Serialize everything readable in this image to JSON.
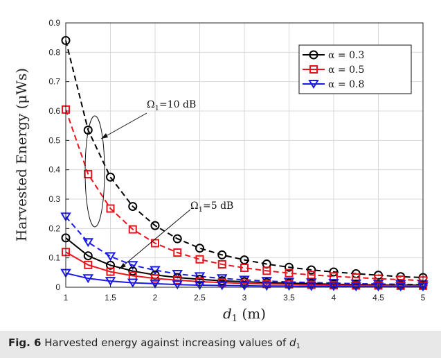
{
  "caption": {
    "label": "Fig. 6",
    "text_before": " Harvested energy against increasing values of ",
    "var": "d",
    "var_sub": "1"
  },
  "chart_data": {
    "type": "line",
    "x": [
      1,
      1.25,
      1.5,
      1.75,
      2,
      2.25,
      2.5,
      2.75,
      3,
      3.25,
      3.5,
      3.75,
      4,
      4.25,
      4.5,
      4.75,
      5
    ],
    "xlim": [
      1,
      5
    ],
    "ylim": [
      0,
      0.9
    ],
    "xticks": [
      "1",
      "1.5",
      "2",
      "2.5",
      "3",
      "3.5",
      "4",
      "4.5",
      "5"
    ],
    "yticks": [
      "0",
      "0.1",
      "0.2",
      "0.3",
      "0.4",
      "0.5",
      "0.6",
      "0.7",
      "0.8",
      "0.9"
    ],
    "xlabel": {
      "var": "d",
      "sub": "1",
      "unit": " (m)"
    },
    "ylabel": "Harvested Energy (μWs)",
    "grid": true,
    "legend_position": "top-right",
    "legend": [
      {
        "label": "α = 0.3",
        "color": "#000000",
        "marker": "circle"
      },
      {
        "label": "α = 0.5",
        "color": "#e8141c",
        "marker": "square"
      },
      {
        "label": "α = 0.8",
        "color": "#1a1ae6",
        "marker": "triangle-down"
      }
    ],
    "series": [
      {
        "alpha": "0.3",
        "snr": "10 dB",
        "color": "#000000",
        "marker": "circle",
        "line": "dashed",
        "values": [
          0.84,
          0.535,
          0.375,
          0.275,
          0.21,
          0.165,
          0.133,
          0.11,
          0.093,
          0.079,
          0.068,
          0.059,
          0.052,
          0.046,
          0.041,
          0.036,
          0.033
        ]
      },
      {
        "alpha": "0.5",
        "snr": "10 dB",
        "color": "#e8141c",
        "marker": "square",
        "line": "dashed",
        "values": [
          0.605,
          0.385,
          0.268,
          0.197,
          0.15,
          0.118,
          0.095,
          0.078,
          0.066,
          0.056,
          0.048,
          0.042,
          0.037,
          0.033,
          0.029,
          0.026,
          0.023
        ]
      },
      {
        "alpha": "0.8",
        "snr": "10 dB",
        "color": "#1a1ae6",
        "marker": "triangle-down",
        "line": "dashed",
        "values": [
          0.24,
          0.153,
          0.105,
          0.075,
          0.058,
          0.045,
          0.037,
          0.03,
          0.025,
          0.021,
          0.018,
          0.016,
          0.014,
          0.012,
          0.011,
          0.01,
          0.009
        ]
      },
      {
        "alpha": "0.3",
        "snr": "5 dB",
        "color": "#000000",
        "marker": "circle",
        "line": "solid",
        "values": [
          0.168,
          0.107,
          0.075,
          0.055,
          0.042,
          0.033,
          0.027,
          0.022,
          0.019,
          0.016,
          0.014,
          0.012,
          0.01,
          0.009,
          0.008,
          0.007,
          0.007
        ]
      },
      {
        "alpha": "0.5",
        "snr": "5 dB",
        "color": "#e8141c",
        "marker": "square",
        "line": "solid",
        "values": [
          0.12,
          0.076,
          0.053,
          0.039,
          0.03,
          0.024,
          0.019,
          0.016,
          0.013,
          0.011,
          0.01,
          0.008,
          0.007,
          0.006,
          0.006,
          0.005,
          0.005
        ]
      },
      {
        "alpha": "0.8",
        "snr": "5 dB",
        "color": "#1a1ae6",
        "marker": "triangle-down",
        "line": "solid",
        "values": [
          0.048,
          0.03,
          0.021,
          0.015,
          0.012,
          0.009,
          0.007,
          0.006,
          0.005,
          0.004,
          0.004,
          0.003,
          0.003,
          0.002,
          0.002,
          0.002,
          0.002
        ]
      }
    ],
    "annotations": [
      {
        "symbol": "Ω",
        "sub": "1",
        "text": "=10 dB",
        "target": [
          1.33,
          0.5
        ]
      },
      {
        "symbol": "Ω",
        "sub": "1",
        "text": "=5 dB",
        "target": [
          1.5,
          0.065
        ]
      }
    ]
  }
}
